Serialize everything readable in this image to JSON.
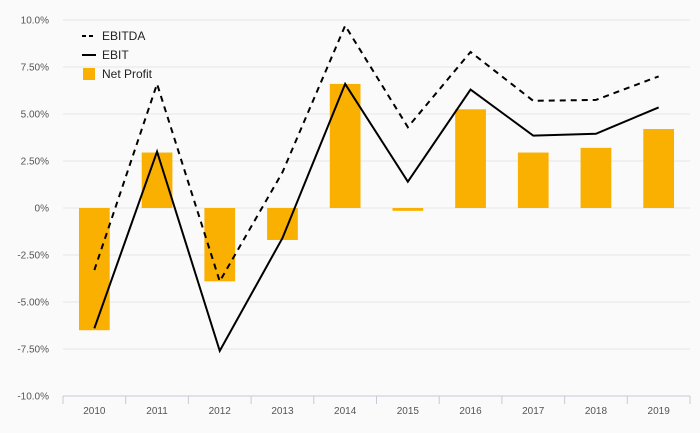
{
  "chart_data": {
    "type": "bar",
    "categories": [
      "2010",
      "2011",
      "2012",
      "2013",
      "2014",
      "2015",
      "2016",
      "2017",
      "2018",
      "2019"
    ],
    "ylim": [
      -10,
      10
    ],
    "yticks": [
      10,
      7.5,
      5,
      2.5,
      0,
      -2.5,
      -5,
      -7.5,
      -10
    ],
    "ytick_labels": [
      "10.0%",
      "7.50%",
      "5.00%",
      "2.50%",
      "0%",
      "-2.50%",
      "-5.00%",
      "-7.50%",
      "-10.0%"
    ],
    "grid": true,
    "legend_position": "top-left",
    "series": [
      {
        "name": "EBITDA",
        "kind": "line",
        "style": "dashed",
        "color": "#000000",
        "values": [
          -3.3,
          6.6,
          -3.9,
          1.9,
          9.7,
          4.3,
          8.3,
          5.7,
          5.75,
          7.0
        ]
      },
      {
        "name": "EBIT",
        "kind": "line",
        "style": "solid",
        "color": "#000000",
        "values": [
          -6.4,
          3.0,
          -7.6,
          -1.6,
          6.6,
          1.4,
          6.3,
          3.85,
          3.95,
          5.35
        ]
      },
      {
        "name": "Net Profit",
        "kind": "bar",
        "color": "#F9B000",
        "values": [
          -6.5,
          2.95,
          -3.9,
          -1.7,
          6.6,
          -0.15,
          5.25,
          2.95,
          3.2,
          4.2
        ]
      }
    ]
  }
}
